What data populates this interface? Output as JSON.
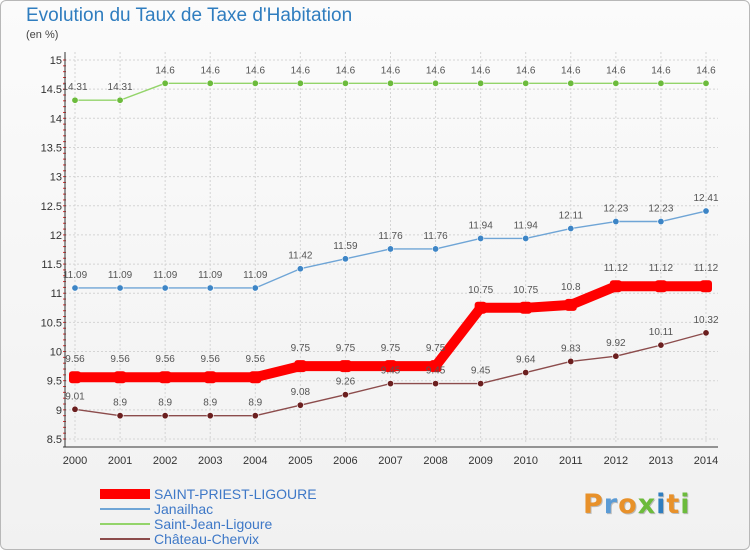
{
  "title": "Evolution du Taux de Taxe d'Habitation",
  "unit": "(en %)",
  "logo": {
    "text": "Proxiti",
    "colors": [
      "#e8912a",
      "#5b9bd5",
      "#e8912a",
      "#6cbb3c",
      "#2f7dbf",
      "#e8912a",
      "#6cbb3c"
    ]
  },
  "chart_data": {
    "type": "line",
    "x": [
      "2000",
      "2001",
      "2002",
      "2003",
      "2004",
      "2005",
      "2006",
      "2007",
      "2008",
      "2009",
      "2010",
      "2011",
      "2012",
      "2013",
      "2014"
    ],
    "ylim": [
      8.5,
      15
    ],
    "yticks": [
      "8.5",
      "9",
      "9.5",
      "10",
      "10.5",
      "11",
      "11.5",
      "12",
      "12.5",
      "13",
      "13.5",
      "14",
      "14.5",
      "15"
    ],
    "grid": true,
    "legend_position": "bottom-left",
    "series": [
      {
        "name": "SAINT-PRIEST-LIGOURE",
        "color": "#ff0000",
        "marker_color": "#ff0000",
        "highlight": true,
        "values": [
          9.56,
          9.56,
          9.56,
          9.56,
          9.56,
          9.75,
          9.75,
          9.75,
          9.75,
          10.75,
          10.75,
          10.8,
          11.12,
          11.12,
          11.12
        ],
        "labels": [
          "9.56",
          "9.56",
          "9.56",
          "9.56",
          "9.56",
          "9.75",
          "9.75",
          "9.75",
          "9.75",
          "10.75",
          "10.75",
          "10.8",
          "11.12",
          "11.12",
          "11.12"
        ]
      },
      {
        "name": "Janailhac",
        "color": "#6fa5d6",
        "marker_color": "#3d85c6",
        "highlight": false,
        "values": [
          11.09,
          11.09,
          11.09,
          11.09,
          11.09,
          11.42,
          11.59,
          11.76,
          11.76,
          11.94,
          11.94,
          12.11,
          12.23,
          12.23,
          12.41
        ],
        "labels": [
          "11.09",
          "11.09",
          "11.09",
          "11.09",
          "11.09",
          "11.42",
          "11.59",
          "11.76",
          "11.76",
          "11.94",
          "11.94",
          "12.11",
          "12.23",
          "12.23",
          "12.41"
        ]
      },
      {
        "name": "Saint-Jean-Ligoure",
        "color": "#93d46a",
        "marker_color": "#6cbb3c",
        "highlight": false,
        "values": [
          14.31,
          14.31,
          14.6,
          14.6,
          14.6,
          14.6,
          14.6,
          14.6,
          14.6,
          14.6,
          14.6,
          14.6,
          14.6,
          14.6,
          14.6
        ],
        "labels": [
          "14.31",
          "14.31",
          "14.6",
          "14.6",
          "14.6",
          "14.6",
          "14.6",
          "14.6",
          "14.6",
          "14.6",
          "14.6",
          "14.6",
          "14.6",
          "14.6",
          "14.6"
        ]
      },
      {
        "name": "Château-Chervix",
        "color": "#8c4c4c",
        "marker_color": "#6b1f1f",
        "highlight": false,
        "values": [
          9.01,
          8.9,
          8.9,
          8.9,
          8.9,
          9.08,
          9.26,
          9.45,
          9.45,
          9.45,
          9.64,
          9.83,
          9.92,
          10.11,
          10.32
        ],
        "labels": [
          "9.01",
          "8.9",
          "8.9",
          "8.9",
          "8.9",
          "9.08",
          "9.26",
          "9.45",
          "9.45",
          "9.45",
          "9.64",
          "9.83",
          "9.92",
          "10.11",
          "10.32"
        ]
      }
    ]
  }
}
